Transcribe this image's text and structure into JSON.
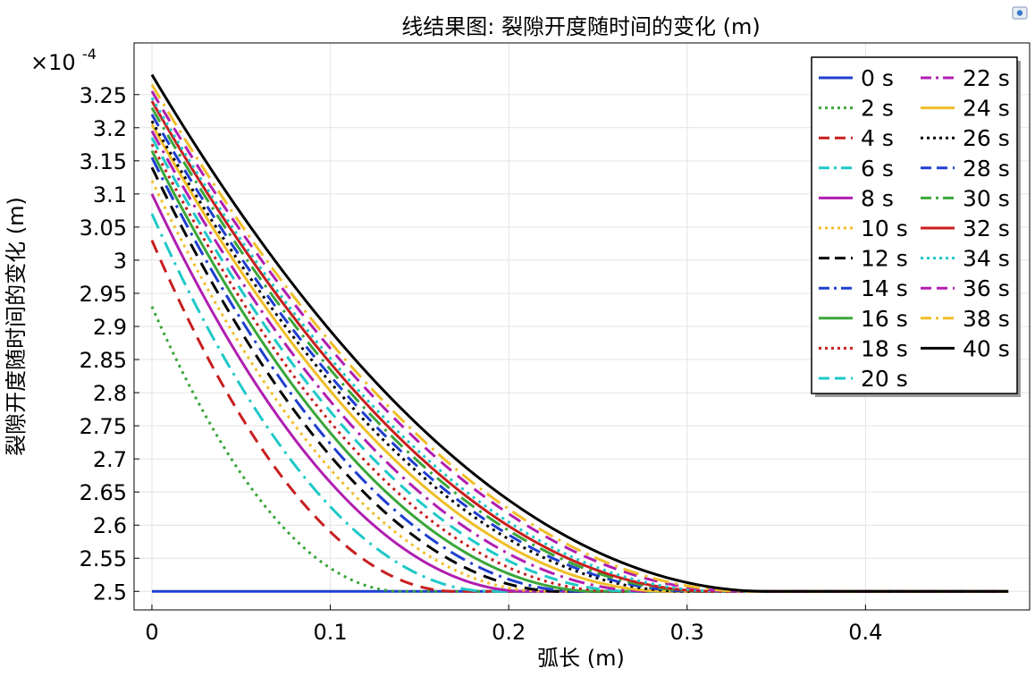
{
  "chart_data": {
    "type": "line",
    "title": "线结果图: 裂隙开度随时间的变化 (m)",
    "xlabel": "弧长 (m)",
    "ylabel": "裂隙开度随时间的变化 (m)",
    "y_multiplier": "×10",
    "y_exponent": "-4",
    "xlim": [
      -0.01,
      0.492
    ],
    "ylim": [
      2.472,
      3.328
    ],
    "x_ticks": [
      "0",
      "0.1",
      "0.2",
      "0.3",
      "0.4"
    ],
    "x_tick_values": [
      0,
      0.1,
      0.2,
      0.3,
      0.4
    ],
    "y_ticks": [
      "2.5",
      "2.55",
      "2.6",
      "2.65",
      "2.7",
      "2.75",
      "2.8",
      "2.85",
      "2.9",
      "2.95",
      "3",
      "3.05",
      "3.1",
      "3.15",
      "3.2",
      "3.25"
    ],
    "y_tick_values": [
      2.5,
      2.55,
      2.6,
      2.65,
      2.7,
      2.75,
      2.8,
      2.85,
      2.9,
      2.95,
      3.0,
      3.05,
      3.1,
      3.15,
      3.2,
      3.25
    ],
    "grid": true,
    "legend_position": "top-right",
    "x_end": 0.48,
    "baseline": 2.5,
    "series": [
      {
        "name": "0 s",
        "start": 2.5,
        "reach": 0.0,
        "color": "#1f3fcf",
        "dash": "solid"
      },
      {
        "name": "2 s",
        "start": 2.93,
        "reach": 0.14,
        "color": "#3aa63a",
        "dash": "dot"
      },
      {
        "name": "4 s",
        "start": 3.03,
        "reach": 0.17,
        "color": "#c81e1e",
        "dash": "dash"
      },
      {
        "name": "6 s",
        "start": 3.07,
        "reach": 0.19,
        "color": "#1fc8c8",
        "dash": "dashdot"
      },
      {
        "name": "8 s",
        "start": 3.1,
        "reach": 0.21,
        "color": "#b01eb0",
        "dash": "solid"
      },
      {
        "name": "10 s",
        "start": 3.12,
        "reach": 0.22,
        "color": "#f0be28",
        "dash": "dot"
      },
      {
        "name": "12 s",
        "start": 3.14,
        "reach": 0.23,
        "color": "#000000",
        "dash": "dash"
      },
      {
        "name": "14 s",
        "start": 3.155,
        "reach": 0.24,
        "color": "#1f3fcf",
        "dash": "dashdot"
      },
      {
        "name": "16 s",
        "start": 3.165,
        "reach": 0.25,
        "color": "#3aa63a",
        "dash": "solid"
      },
      {
        "name": "18 s",
        "start": 3.175,
        "reach": 0.26,
        "color": "#c81e1e",
        "dash": "dot"
      },
      {
        "name": "20 s",
        "start": 3.185,
        "reach": 0.27,
        "color": "#1fc8c8",
        "dash": "dash"
      },
      {
        "name": "22 s",
        "start": 3.195,
        "reach": 0.28,
        "color": "#b01eb0",
        "dash": "dashdot"
      },
      {
        "name": "24 s",
        "start": 3.205,
        "reach": 0.29,
        "color": "#f0be28",
        "dash": "solid"
      },
      {
        "name": "26 s",
        "start": 3.21,
        "reach": 0.3,
        "color": "#000000",
        "dash": "dot"
      },
      {
        "name": "28 s",
        "start": 3.22,
        "reach": 0.305,
        "color": "#1f3fcf",
        "dash": "dash"
      },
      {
        "name": "30 s",
        "start": 3.23,
        "reach": 0.31,
        "color": "#3aa63a",
        "dash": "dashdot"
      },
      {
        "name": "32 s",
        "start": 3.24,
        "reach": 0.315,
        "color": "#c81e1e",
        "dash": "solid"
      },
      {
        "name": "34 s",
        "start": 3.245,
        "reach": 0.32,
        "color": "#1fc8c8",
        "dash": "dot"
      },
      {
        "name": "36 s",
        "start": 3.255,
        "reach": 0.33,
        "color": "#b01eb0",
        "dash": "dash"
      },
      {
        "name": "38 s",
        "start": 3.265,
        "reach": 0.335,
        "color": "#f0be28",
        "dash": "dashdot"
      },
      {
        "name": "40 s",
        "start": 3.28,
        "reach": 0.345,
        "color": "#000000",
        "dash": "solid"
      }
    ]
  }
}
